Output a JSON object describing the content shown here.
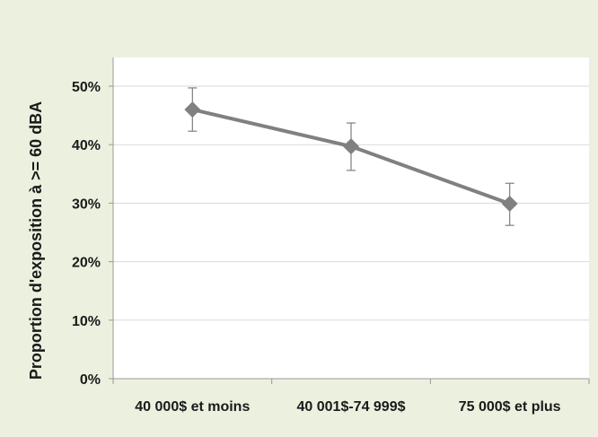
{
  "chart_data": {
    "type": "line",
    "title": "",
    "xlabel": "",
    "ylabel": "Proportion d'exposition à >= 60 dBA",
    "categories": [
      "40 000$ et moins",
      "40 001$-74 999$",
      "75 000$ et plus"
    ],
    "series": [
      {
        "values": [
          0.46,
          0.397,
          0.299
        ],
        "error_low": [
          0.423,
          0.356,
          0.262
        ],
        "error_high": [
          0.497,
          0.437,
          0.334
        ],
        "color": "#808080",
        "marker": "diamond"
      }
    ],
    "ylim": [
      0,
      0.5
    ],
    "yticks": [
      0,
      0.1,
      0.2,
      0.3,
      0.4,
      0.5
    ],
    "ytick_labels": [
      "0%",
      "10%",
      "20%",
      "30%",
      "40%",
      "50%"
    ],
    "grid": true,
    "legend": "none"
  },
  "colors": {
    "outer_background": "#ebf1de",
    "plot_background": "#ffffff",
    "gridline": "#d9d9d9",
    "series": "#808080"
  }
}
